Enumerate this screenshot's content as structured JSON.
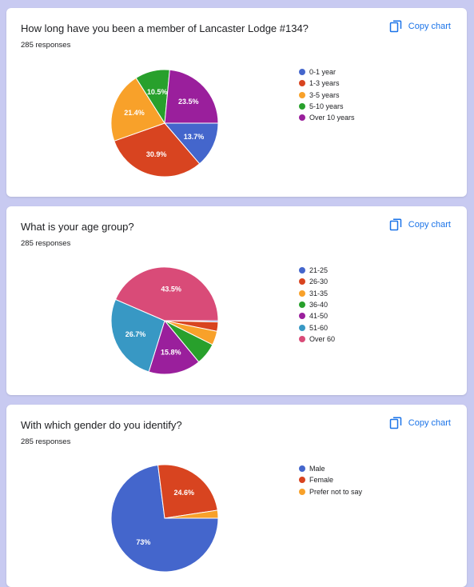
{
  "copy_label": "Copy chart",
  "copy_icon": "copy-icon",
  "cards": [
    {
      "title": "How long have you been a member of Lancaster Lodge #134?",
      "responses": "285 responses"
    },
    {
      "title": "What is your age group?",
      "responses": "285 responses"
    },
    {
      "title": "With which gender do you identify?",
      "responses": "285 responses"
    }
  ],
  "chart_data": [
    {
      "type": "pie",
      "title": "How long have you been a member of Lancaster Lodge #134?",
      "legend_position": "right",
      "categories": [
        "0-1 year",
        "1-3 years",
        "3-5 years",
        "5-10 years",
        "Over 10 years"
      ],
      "values": [
        13.7,
        30.9,
        21.4,
        10.5,
        23.5
      ],
      "labels": [
        "13.7%",
        "30.9%",
        "21.4%",
        "10.5%",
        "23.5%"
      ],
      "colors": [
        "#4466cc",
        "#d84420",
        "#f8a12a",
        "#28a02c",
        "#9a1f9c"
      ]
    },
    {
      "type": "pie",
      "title": "What is your age group?",
      "legend_position": "right",
      "categories": [
        "21-25",
        "26-30",
        "31-35",
        "36-40",
        "41-50",
        "51-60",
        "Over 60"
      ],
      "values": [
        0.4,
        2.8,
        4.2,
        6.6,
        15.8,
        26.7,
        43.5
      ],
      "labels": [
        "",
        "",
        "",
        "",
        "15.8%",
        "26.7%",
        "43.5%"
      ],
      "colors": [
        "#4466cc",
        "#d84420",
        "#f8a12a",
        "#28a02c",
        "#9a1f9c",
        "#3898c4",
        "#d94b78"
      ]
    },
    {
      "type": "pie",
      "title": "With which gender do you identify?",
      "legend_position": "right",
      "categories": [
        "Male",
        "Female",
        "Prefer not to say"
      ],
      "values": [
        73.0,
        24.6,
        2.4
      ],
      "labels": [
        "73%",
        "24.6%",
        ""
      ],
      "colors": [
        "#4466cc",
        "#d84420",
        "#f8a12a"
      ]
    }
  ]
}
